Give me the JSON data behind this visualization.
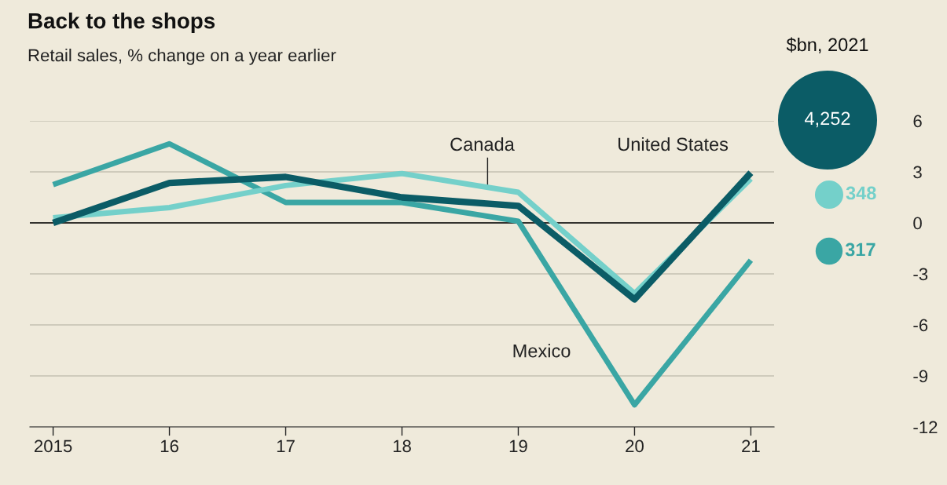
{
  "chart_data": [
    {
      "type": "line",
      "title": "Back to the shops",
      "subtitle": "Retail sales, % change on a year earlier",
      "x": [
        2015,
        2016,
        2017,
        2018,
        2019,
        2020,
        2021
      ],
      "series": [
        {
          "name": "Mexico",
          "color": "#3aa6a4",
          "values": [
            2.25,
            4.65,
            1.2,
            1.2,
            0.1,
            -10.7,
            -2.2
          ]
        },
        {
          "name": "Canada",
          "color": "#74d0ca",
          "values": [
            0.3,
            0.9,
            2.2,
            2.9,
            1.8,
            -4.15,
            2.6
          ]
        },
        {
          "name": "United States",
          "color": "#0b5c66",
          "values": [
            0,
            2.35,
            2.7,
            1.5,
            1.0,
            -4.5,
            2.95
          ]
        }
      ],
      "xlim": [
        2014.8,
        2021.2
      ],
      "xticks": [
        {
          "value": 2015,
          "label": "2015"
        },
        {
          "value": 2016,
          "label": "16"
        },
        {
          "value": 2017,
          "label": "17"
        },
        {
          "value": 2018,
          "label": "18"
        },
        {
          "value": 2019,
          "label": "19"
        },
        {
          "value": 2020,
          "label": "20"
        },
        {
          "value": 2021,
          "label": "21"
        }
      ],
      "ylim": [
        -12,
        6
      ],
      "yticks": [
        -12,
        -9,
        -6,
        -3,
        0,
        3,
        6
      ],
      "grid": "y",
      "legend": false,
      "marker": "none",
      "line_style": "solid",
      "ref_lines": [
        {
          "axis": "y",
          "value": 0,
          "color": "#000000"
        }
      ]
    },
    {
      "type": "other",
      "title": "$bn, 2021",
      "values": [
        4252,
        348,
        317
      ],
      "value_labels": [
        "4,252",
        "348",
        "317"
      ],
      "colors": [
        "#0b5c66",
        "#74d0ca",
        "#3aa6a4"
      ]
    }
  ]
}
